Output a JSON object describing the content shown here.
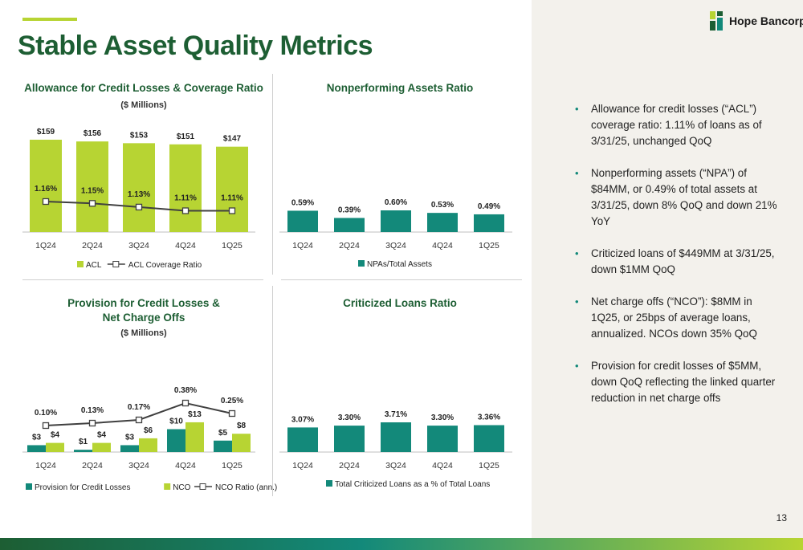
{
  "header": {
    "title": "Stable Asset Quality Metrics"
  },
  "logo": {
    "text": "Hope Bancorp"
  },
  "colors": {
    "dark_green": "#1d5e33",
    "teal": "#13897a",
    "lime": "#b7d433",
    "line": "#404040",
    "panel_bg": "#f3f1ec"
  },
  "bullets": [
    "Allowance for credit losses (“ACL”) coverage ratio: 1.11% of loans as of 3/31/25, unchanged QoQ",
    "Nonperforming assets (“NPA”) of $84MM, or 0.49% of total assets at 3/31/25, down 8% QoQ and down 21% YoY",
    "Criticized loans of $449MM at 3/31/25, down $1MM QoQ",
    "Net charge offs (“NCO”): $8MM in 1Q25, or 25bps of average loans, annualized. NCOs down 35% QoQ",
    "Provision for credit losses of $5MM, down QoQ reflecting the linked quarter reduction in net charge offs"
  ],
  "page_number": "13",
  "chart_data": [
    {
      "type": "bar",
      "title": "Allowance for Credit Losses & Coverage Ratio",
      "subtitle": "($ Millions)",
      "categories": [
        "1Q24",
        "2Q24",
        "3Q24",
        "4Q24",
        "1Q25"
      ],
      "series": [
        {
          "name": "ACL",
          "kind": "bar",
          "color": "#b7d433",
          "values": [
            159,
            156,
            153,
            151,
            147
          ],
          "labels": [
            "$159",
            "$156",
            "$153",
            "$151",
            "$147"
          ]
        },
        {
          "name": "ACL Coverage Ratio",
          "kind": "line",
          "color": "#404040",
          "values": [
            1.16,
            1.15,
            1.13,
            1.11,
            1.11
          ],
          "labels": [
            "1.16%",
            "1.15%",
            "1.13%",
            "1.11%",
            "1.11%"
          ]
        }
      ],
      "legend": "bottom"
    },
    {
      "type": "bar",
      "title": "Nonperforming Assets Ratio",
      "categories": [
        "1Q24",
        "2Q24",
        "3Q24",
        "4Q24",
        "1Q25"
      ],
      "series": [
        {
          "name": "NPAs/Total Assets",
          "kind": "bar",
          "color": "#13897a",
          "values": [
            0.59,
            0.39,
            0.6,
            0.53,
            0.49
          ],
          "labels": [
            "0.59%",
            "0.39%",
            "0.60%",
            "0.53%",
            "0.49%"
          ]
        }
      ],
      "legend": "bottom"
    },
    {
      "type": "bar",
      "title_lines": [
        "Provision for Credit Losses &",
        "Net Charge Offs"
      ],
      "subtitle": "($ Millions)",
      "categories": [
        "1Q24",
        "2Q24",
        "3Q24",
        "4Q24",
        "1Q25"
      ],
      "series": [
        {
          "name": "Provision for Credit Losses",
          "kind": "bar",
          "color": "#13897a",
          "values": [
            3,
            1,
            3,
            10,
            5
          ],
          "labels": [
            "$3",
            "$1",
            "$3",
            "$10",
            "$5"
          ]
        },
        {
          "name": "NCO",
          "kind": "bar",
          "color": "#b7d433",
          "values": [
            4,
            4,
            6,
            13,
            8
          ],
          "labels": [
            "$4",
            "$4",
            "$6",
            "$13",
            "$8"
          ]
        },
        {
          "name": "NCO Ratio (ann.)",
          "kind": "line",
          "color": "#404040",
          "values": [
            0.1,
            0.13,
            0.17,
            0.38,
            0.25
          ],
          "labels": [
            "0.10%",
            "0.13%",
            "0.17%",
            "0.38%",
            "0.25%"
          ]
        }
      ],
      "legend": "bottom"
    },
    {
      "type": "bar",
      "title": "Criticized Loans Ratio",
      "categories": [
        "1Q24",
        "2Q24",
        "3Q24",
        "4Q24",
        "1Q25"
      ],
      "series": [
        {
          "name": "Total Criticized Loans as a % of Total Loans",
          "kind": "bar",
          "color": "#13897a",
          "values": [
            3.07,
            3.3,
            3.71,
            3.3,
            3.36
          ],
          "labels": [
            "3.07%",
            "3.30%",
            "3.71%",
            "3.30%",
            "3.36%"
          ]
        }
      ],
      "legend": "bottom"
    }
  ]
}
